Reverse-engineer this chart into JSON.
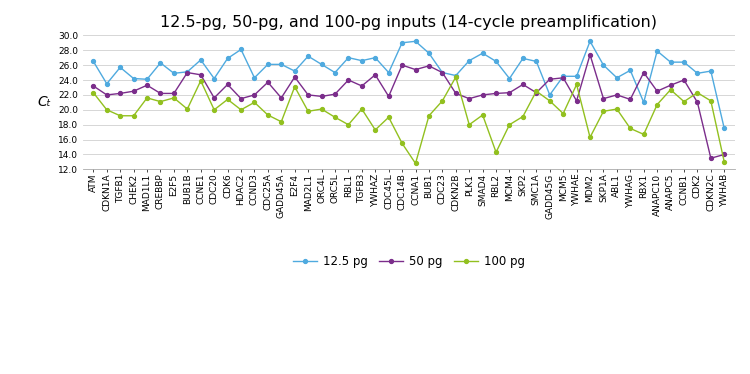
{
  "title": "12.5-pg, 50-pg, and 100-pg inputs (14-cycle preamplification)",
  "ylabel": "Cₜ",
  "ylim": [
    12.0,
    30.0
  ],
  "yticks": [
    12.0,
    14.0,
    16.0,
    18.0,
    20.0,
    22.0,
    24.0,
    26.0,
    28.0,
    30.0
  ],
  "ytick_labels": [
    "12.0",
    "14.0",
    "16.0",
    "18.0",
    "20.0",
    "22.0",
    "24.0",
    "26.0",
    "28.0",
    "30.0"
  ],
  "labels": [
    "ATM",
    "CDKN1A",
    "TGFB1",
    "CHEK2",
    "MAD1L1",
    "CREBBP",
    "E2F5",
    "BUB1B",
    "CCNE1",
    "CDC20",
    "CDK6",
    "HDAC2",
    "CCND3",
    "CDC25A",
    "GADD45A",
    "E2F4",
    "MAD2L1",
    "ORC4L",
    "ORC5L",
    "RBL1",
    "TGFB3",
    "YWHAZ",
    "CDC45L",
    "CDC14B",
    "CCNA1",
    "BUB1",
    "CDC23",
    "CDKN2B",
    "PLK1",
    "SMAD4",
    "RBL2",
    "MCM4",
    "SKP2",
    "SMC1A",
    "GADD45G",
    "MCM5",
    "YWHAE",
    "MDM2",
    "SKP1A",
    "ABL1",
    "YWHAG",
    "RBX1",
    "ANAPC10",
    "ANAPC5",
    "CCNB1",
    "CDK2",
    "CDKN2C",
    "YWHAB"
  ],
  "series_125": [
    26.5,
    23.5,
    25.7,
    24.2,
    24.1,
    26.3,
    24.9,
    25.1,
    26.7,
    24.2,
    26.9,
    28.1,
    24.3,
    26.1,
    26.1,
    25.2,
    27.2,
    26.1,
    25.0,
    27.0,
    26.6,
    27.0,
    25.0,
    29.0,
    29.2,
    27.6,
    25.0,
    24.6,
    26.6,
    27.6,
    26.5,
    24.2,
    26.9,
    26.5,
    22.0,
    24.5,
    24.5,
    29.2,
    26.0,
    24.3,
    25.3,
    21.0,
    27.9,
    26.4,
    26.4,
    24.9,
    25.2,
    17.5
  ],
  "series_50": [
    23.2,
    22.0,
    22.2,
    22.5,
    23.3,
    22.2,
    22.2,
    25.0,
    24.7,
    21.6,
    23.4,
    21.5,
    22.0,
    23.7,
    21.6,
    24.4,
    22.0,
    21.8,
    22.1,
    24.0,
    23.2,
    24.7,
    21.8,
    26.0,
    25.4,
    25.9,
    25.0,
    22.2,
    21.5,
    22.0,
    22.2,
    22.3,
    23.4,
    22.3,
    24.1,
    24.3,
    21.2,
    27.4,
    21.5,
    22.0,
    21.4,
    25.0,
    22.5,
    23.3,
    24.0,
    21.0,
    13.5,
    14.0
  ],
  "series_100": [
    22.3,
    20.0,
    19.2,
    19.2,
    21.6,
    21.1,
    21.6,
    20.1,
    23.9,
    20.0,
    21.4,
    20.0,
    21.0,
    19.3,
    18.4,
    23.1,
    19.8,
    20.1,
    19.0,
    18.0,
    20.1,
    17.3,
    19.0,
    15.5,
    12.8,
    19.2,
    21.2,
    24.4,
    18.0,
    19.3,
    14.3,
    18.0,
    19.1,
    22.5,
    21.2,
    19.5,
    23.4,
    16.3,
    19.8,
    20.1,
    17.5,
    16.7,
    20.7,
    22.7,
    21.1,
    22.3,
    21.2,
    13.0
  ],
  "color_125": "#4FAADF",
  "color_50": "#7B2D8B",
  "color_100": "#92C01F",
  "legend_labels": [
    "12.5 pg",
    "50 pg",
    "100 pg"
  ],
  "bg_color": "#FFFFFF",
  "grid_color": "#D0D0D0",
  "title_fontsize": 11.5,
  "ylabel_fontsize": 10,
  "tick_fontsize": 6.5,
  "legend_fontsize": 8.5
}
